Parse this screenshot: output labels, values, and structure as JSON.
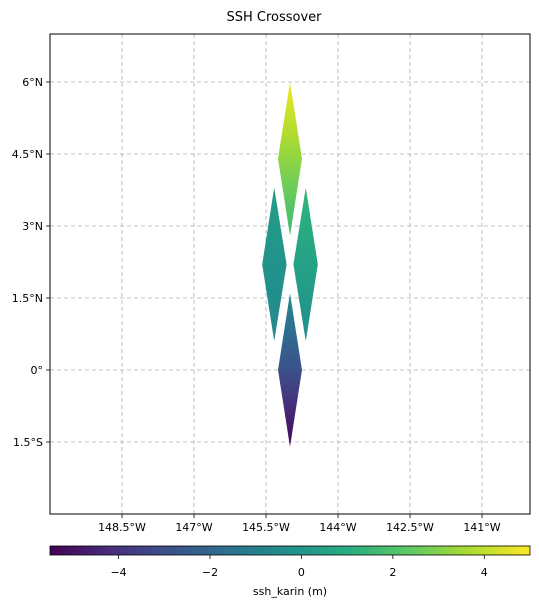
{
  "chart_data": {
    "type": "heatmap",
    "title": "SSH Crossover",
    "xticks": [
      {
        "value": -148.5,
        "label": "148.5°W"
      },
      {
        "value": -147.0,
        "label": "147°W"
      },
      {
        "value": -145.5,
        "label": "145.5°W"
      },
      {
        "value": -144.0,
        "label": "144°W"
      },
      {
        "value": -142.5,
        "label": "142.5°W"
      },
      {
        "value": -141.0,
        "label": "141°W"
      }
    ],
    "yticks": [
      {
        "value": 6.0,
        "label": "6°N"
      },
      {
        "value": 4.5,
        "label": "4.5°N"
      },
      {
        "value": 3.0,
        "label": "3°N"
      },
      {
        "value": 1.5,
        "label": "1.5°N"
      },
      {
        "value": 0.0,
        "label": "0°"
      },
      {
        "value": -1.5,
        "label": "1.5°S"
      }
    ],
    "xlim": [
      -150.0,
      -140.0
    ],
    "ylim": [
      -3.0,
      7.0
    ],
    "grid": true,
    "swaths": [
      {
        "name": "swath-top",
        "vertices": [
          [
            -145.0,
            6.0
          ],
          [
            -144.75,
            4.4
          ],
          [
            -145.0,
            2.8
          ],
          [
            -145.25,
            4.4
          ]
        ],
        "value_top": 4.8,
        "value_bottom": 1.6
      },
      {
        "name": "swath-left",
        "vertices": [
          [
            -145.33,
            3.8
          ],
          [
            -145.07,
            2.2
          ],
          [
            -145.33,
            0.6
          ],
          [
            -145.58,
            2.2
          ]
        ],
        "value_top": 0.3,
        "value_bottom": -0.6
      },
      {
        "name": "swath-right",
        "vertices": [
          [
            -144.67,
            3.8
          ],
          [
            -144.42,
            2.2
          ],
          [
            -144.67,
            0.6
          ],
          [
            -144.93,
            2.2
          ]
        ],
        "value_top": 1.4,
        "value_bottom": -0.4
      },
      {
        "name": "swath-bottom",
        "vertices": [
          [
            -145.0,
            1.6
          ],
          [
            -144.75,
            0.0
          ],
          [
            -145.0,
            -1.6
          ],
          [
            -145.25,
            0.0
          ]
        ],
        "value_top": -0.5,
        "value_bottom": -5.4
      }
    ],
    "colorbar": {
      "label": "ssh_karin (m)",
      "cmap": "viridis",
      "vmin": -5.5,
      "vmax": 5.0,
      "ticks": [
        {
          "value": -4,
          "label": "−4"
        },
        {
          "value": -2,
          "label": "−2"
        },
        {
          "value": 0,
          "label": "0"
        },
        {
          "value": 2,
          "label": "2"
        },
        {
          "value": 4,
          "label": "4"
        }
      ]
    }
  }
}
